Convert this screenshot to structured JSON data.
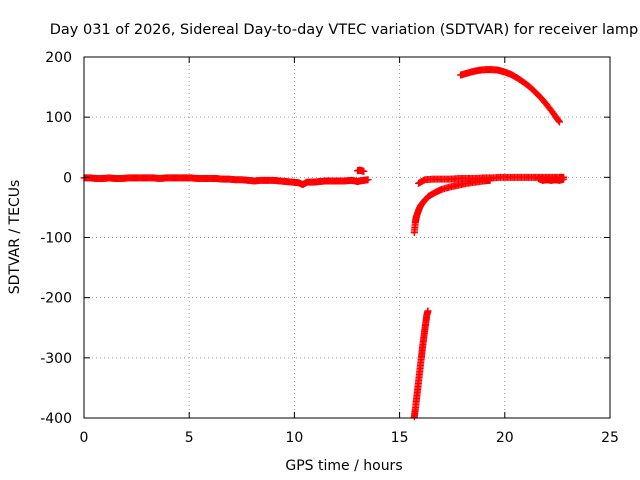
{
  "chart_data": {
    "type": "scatter",
    "title": "Day 031 of 2026, Sidereal Day-to-day VTEC variation (SDTVAR) for receiver lamp",
    "xlabel": "GPS time / hours",
    "ylabel": "SDTVAR / TECUs",
    "xlim": [
      0,
      25
    ],
    "ylim": [
      -400,
      200
    ],
    "xticks": [
      0,
      5,
      10,
      15,
      20,
      25
    ],
    "yticks": [
      -400,
      -300,
      -200,
      -100,
      0,
      100,
      200
    ],
    "xtick_labels": [
      "0",
      "5",
      "10",
      "15",
      "20",
      "25"
    ],
    "ytick_labels": [
      "-400",
      "-300",
      "-200",
      "-100",
      "0",
      "100",
      "200"
    ],
    "grid": true,
    "marker": "+",
    "series_color": "#ff0000",
    "series": [
      {
        "name": "segment-1",
        "points": [
          [
            0.0,
            -1
          ],
          [
            0.3,
            -1
          ],
          [
            0.6,
            -2
          ],
          [
            0.9,
            -2
          ],
          [
            1.2,
            -1
          ],
          [
            1.5,
            -2
          ],
          [
            1.8,
            -2
          ],
          [
            2.1,
            -1
          ],
          [
            2.4,
            -1
          ],
          [
            2.7,
            -1
          ],
          [
            3.0,
            -1
          ],
          [
            3.3,
            -1
          ],
          [
            3.6,
            -2
          ],
          [
            3.9,
            -1
          ],
          [
            4.2,
            -1
          ],
          [
            4.5,
            -1
          ],
          [
            4.8,
            -1
          ],
          [
            5.1,
            -1
          ],
          [
            5.4,
            -2
          ],
          [
            5.7,
            -2
          ],
          [
            6.0,
            -2
          ],
          [
            6.3,
            -2
          ],
          [
            6.6,
            -3
          ],
          [
            6.9,
            -3
          ],
          [
            7.2,
            -4
          ],
          [
            7.5,
            -4
          ],
          [
            7.8,
            -5
          ],
          [
            8.1,
            -6
          ],
          [
            8.4,
            -5
          ],
          [
            8.7,
            -5
          ],
          [
            9.0,
            -5
          ],
          [
            9.3,
            -6
          ],
          [
            9.6,
            -7
          ],
          [
            9.9,
            -8
          ],
          [
            10.2,
            -9
          ],
          [
            10.4,
            -12
          ],
          [
            10.6,
            -8
          ],
          [
            10.9,
            -8
          ],
          [
            11.2,
            -7
          ],
          [
            11.5,
            -6
          ],
          [
            11.8,
            -6
          ],
          [
            12.1,
            -6
          ],
          [
            12.4,
            -6
          ],
          [
            12.7,
            -5
          ],
          [
            12.9,
            -6
          ],
          [
            13.0,
            -7
          ],
          [
            13.1,
            -6
          ],
          [
            13.3,
            -5
          ],
          [
            13.5,
            -4
          ]
        ]
      },
      {
        "name": "segment-2",
        "points": [
          [
            13.0,
            11
          ],
          [
            13.1,
            12
          ],
          [
            13.2,
            11
          ],
          [
            13.3,
            10
          ]
        ]
      },
      {
        "name": "segment-3",
        "points": [
          [
            15.7,
            -398
          ],
          [
            15.75,
            -385
          ],
          [
            15.8,
            -370
          ],
          [
            15.85,
            -355
          ],
          [
            15.9,
            -340
          ],
          [
            15.95,
            -325
          ],
          [
            16.0,
            -310
          ],
          [
            16.05,
            -295
          ],
          [
            16.1,
            -280
          ],
          [
            16.15,
            -266
          ],
          [
            16.2,
            -253
          ],
          [
            16.25,
            -240
          ],
          [
            16.3,
            -228
          ],
          [
            16.35,
            -222
          ]
        ]
      },
      {
        "name": "segment-4",
        "points": [
          [
            15.7,
            -92
          ],
          [
            15.75,
            -75
          ],
          [
            15.8,
            -65
          ],
          [
            15.9,
            -55
          ],
          [
            16.0,
            -47
          ],
          [
            16.2,
            -38
          ],
          [
            16.4,
            -31
          ],
          [
            16.7,
            -25
          ],
          [
            17.0,
            -20
          ],
          [
            17.4,
            -16
          ],
          [
            17.8,
            -13
          ],
          [
            18.2,
            -10
          ],
          [
            18.6,
            -8
          ],
          [
            19.0,
            -6
          ],
          [
            19.3,
            -5
          ]
        ]
      },
      {
        "name": "segment-5",
        "points": [
          [
            15.9,
            -10
          ],
          [
            16.2,
            -4
          ],
          [
            16.6,
            -3
          ],
          [
            17.0,
            -3
          ],
          [
            17.4,
            -3
          ],
          [
            17.8,
            -2
          ],
          [
            18.2,
            -2
          ],
          [
            18.6,
            -2
          ],
          [
            19.0,
            -1
          ],
          [
            19.4,
            -1
          ],
          [
            19.8,
            0
          ],
          [
            20.2,
            0
          ],
          [
            20.6,
            0
          ],
          [
            21.0,
            0
          ],
          [
            21.4,
            0
          ],
          [
            21.8,
            0
          ],
          [
            22.2,
            0
          ],
          [
            22.6,
            0
          ],
          [
            22.8,
            0
          ],
          [
            21.6,
            -2
          ],
          [
            21.8,
            -5
          ],
          [
            22.0,
            -4
          ],
          [
            22.2,
            -5
          ],
          [
            22.4,
            -4
          ],
          [
            22.6,
            -5
          ],
          [
            22.8,
            -3
          ]
        ]
      },
      {
        "name": "segment-6",
        "points": [
          [
            17.9,
            170
          ],
          [
            18.2,
            173
          ],
          [
            18.5,
            176
          ],
          [
            18.8,
            178
          ],
          [
            19.1,
            179
          ],
          [
            19.4,
            179
          ],
          [
            19.7,
            178
          ],
          [
            20.0,
            175
          ],
          [
            20.3,
            171
          ],
          [
            20.6,
            165
          ],
          [
            20.9,
            158
          ],
          [
            21.2,
            150
          ],
          [
            21.5,
            140
          ],
          [
            21.8,
            129
          ],
          [
            22.1,
            116
          ],
          [
            22.4,
            102
          ],
          [
            22.6,
            92
          ]
        ]
      }
    ]
  }
}
